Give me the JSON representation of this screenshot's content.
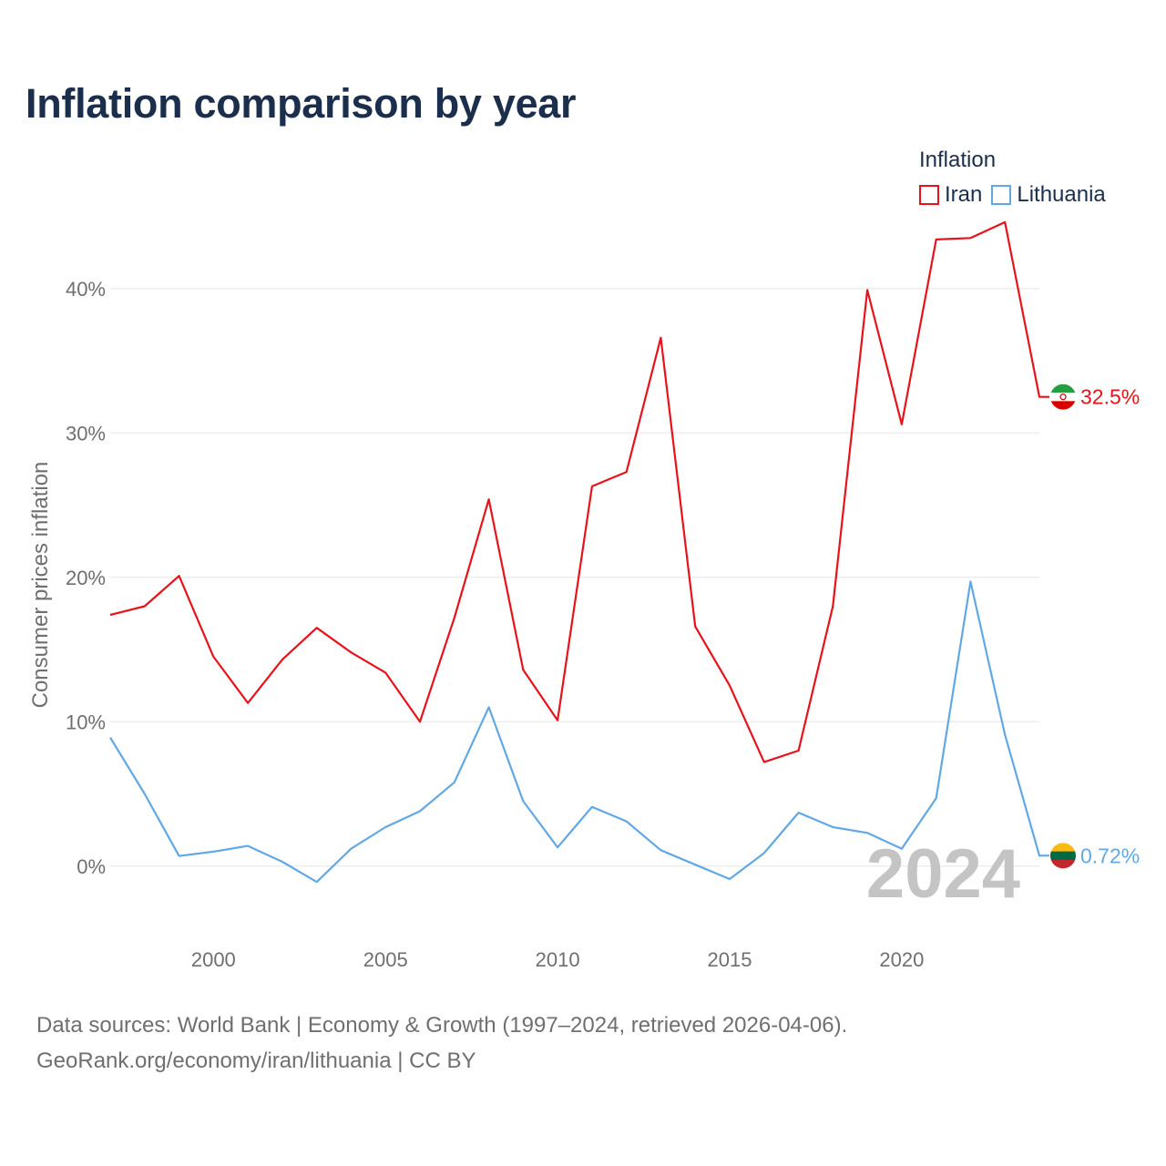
{
  "title": "Inflation comparison by year",
  "legend": {
    "title": "Inflation",
    "items": [
      {
        "label": "Iran",
        "color": "#e8121a"
      },
      {
        "label": "Lithuania",
        "color": "#62a8e5"
      }
    ]
  },
  "year_watermark": "2024",
  "footer": {
    "line1": "Data sources: World Bank | Economy & Growth (1997–2024, retrieved 2026-04-06).",
    "line2": "GeoRank.org/economy/iran/lithuania | CC BY"
  },
  "chart_data": {
    "type": "line",
    "title": "Inflation comparison by year",
    "xlabel": "",
    "ylabel": "Consumer prices inflation",
    "x": [
      1997,
      1998,
      1999,
      2000,
      2001,
      2002,
      2003,
      2004,
      2005,
      2006,
      2007,
      2008,
      2009,
      2010,
      2011,
      2012,
      2013,
      2014,
      2015,
      2016,
      2017,
      2018,
      2019,
      2020,
      2021,
      2022,
      2023,
      2024
    ],
    "xlim": [
      1997,
      2024
    ],
    "ylim": [
      -5,
      48
    ],
    "x_ticks": [
      2000,
      2005,
      2010,
      2015,
      2020
    ],
    "y_ticks": [
      0,
      10,
      20,
      30,
      40
    ],
    "y_tick_labels": [
      "0%",
      "10%",
      "20%",
      "30%",
      "40%"
    ],
    "grid": true,
    "series": [
      {
        "name": "Iran",
        "color": "#e8121a",
        "end_label": "32.5%",
        "flag": "iran",
        "values": [
          17.4,
          18.0,
          20.1,
          14.5,
          11.3,
          14.3,
          16.5,
          14.8,
          13.4,
          10.0,
          17.2,
          25.4,
          13.6,
          10.1,
          26.3,
          27.3,
          36.6,
          16.6,
          12.5,
          7.2,
          8.0,
          18.0,
          39.9,
          30.6,
          43.4,
          43.5,
          44.6,
          32.5
        ]
      },
      {
        "name": "Lithuania",
        "color": "#62a8e5",
        "end_label": "0.72%",
        "flag": "lithuania",
        "values": [
          8.9,
          5.0,
          0.7,
          1.0,
          1.4,
          0.3,
          -1.1,
          1.2,
          2.7,
          3.8,
          5.8,
          11.0,
          4.5,
          1.3,
          4.1,
          3.1,
          1.1,
          0.1,
          -0.9,
          0.9,
          3.7,
          2.7,
          2.3,
          1.2,
          4.7,
          19.7,
          9.1,
          0.72
        ]
      }
    ]
  }
}
